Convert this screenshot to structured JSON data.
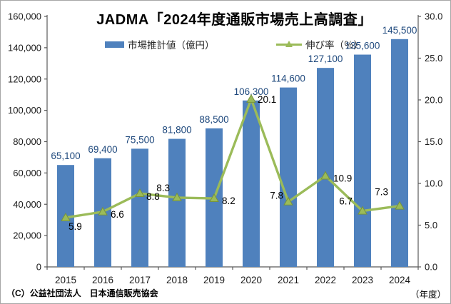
{
  "title": "JADMA「2024年度通販市場売上高調査」",
  "footer": {
    "copyright": "（C）公益社団法人　日本通信販売協会",
    "x_axis_unit": "（年度）"
  },
  "colors": {
    "bar": "#4f81bd",
    "line": "#9bbb59",
    "line_marker_edge": "#77933c",
    "bar_label_text": "#1f497d",
    "line_label_text": "#000000",
    "axis": "#595959",
    "axis_text": "#1a1a1a"
  },
  "chart_data": {
    "type": "bar",
    "subtype": "bar+line combo",
    "title": "JADMA「2024年度通販市場売上高調査」",
    "categories": [
      "2015",
      "2016",
      "2017",
      "2018",
      "2019",
      "2020",
      "2021",
      "2022",
      "2023",
      "2024"
    ],
    "series": [
      {
        "name": "市場推計値（億円）",
        "type": "bar",
        "axis": "left",
        "color": "#4f81bd",
        "values": [
          65100,
          69400,
          75500,
          81800,
          88500,
          106300,
          114600,
          127100,
          135600,
          145500
        ],
        "data_labels": [
          "65,100",
          "69,400",
          "75,500",
          "81,800",
          "88,500",
          "106,300",
          "114,600",
          "127,100",
          "135,600",
          "145,500"
        ]
      },
      {
        "name": "伸び率（％）",
        "type": "line",
        "axis": "right",
        "color": "#9bbb59",
        "marker": "triangle",
        "values": [
          5.9,
          6.6,
          8.8,
          8.3,
          8.2,
          20.1,
          7.8,
          10.9,
          6.7,
          7.3
        ],
        "data_labels": [
          "5.9",
          "6.6",
          "8.8",
          "8.3",
          "8.2",
          "20.1",
          "7.8",
          "10.9",
          "6.7",
          "7.3"
        ]
      }
    ],
    "left_axis": {
      "min": 0,
      "max": 160000,
      "step": 20000,
      "tick_labels": [
        "0",
        "20,000",
        "40,000",
        "60,000",
        "80,000",
        "100,000",
        "120,000",
        "140,000",
        "160,000"
      ]
    },
    "right_axis": {
      "min": 0.0,
      "max": 30.0,
      "step": 5.0,
      "tick_labels": [
        "0.0",
        "5.0",
        "10.0",
        "15.0",
        "20.0",
        "25.0",
        "30.0"
      ]
    },
    "grid": "off",
    "legend_position": "top",
    "xlabel": "（年度）",
    "ylabel": ""
  },
  "legend": {
    "bar_label": "市場推計値（億円）",
    "line_label": "伸び率（％）"
  }
}
